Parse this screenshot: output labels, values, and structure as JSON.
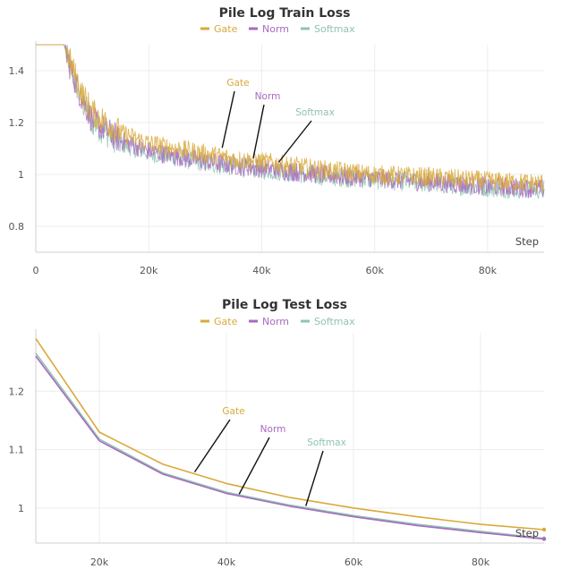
{
  "chart_data": [
    {
      "type": "line",
      "title": "Pile Log Train Loss",
      "xlabel": "Step",
      "ylabel": "",
      "xlim": [
        0,
        90000
      ],
      "ylim": [
        0.7,
        1.5
      ],
      "xticks": [
        0,
        20000,
        40000,
        60000,
        80000
      ],
      "xtick_labels": [
        "0",
        "20k",
        "40k",
        "60k",
        "80k"
      ],
      "yticks": [
        0.8,
        1.0,
        1.2,
        1.4
      ],
      "ytick_labels": [
        "0.8",
        "1",
        "1.2",
        "1.4"
      ],
      "grid": true,
      "legend": "top-center",
      "noisy": true,
      "series": [
        {
          "name": "Gate",
          "color": "#d9a93b",
          "x": [
            0,
            5000,
            6000,
            8000,
            10000,
            15000,
            20000,
            25000,
            30000,
            35000,
            40000,
            50000,
            60000,
            70000,
            80000,
            90000
          ],
          "y": [
            1.5,
            1.5,
            1.44,
            1.32,
            1.24,
            1.16,
            1.12,
            1.1,
            1.08,
            1.06,
            1.05,
            1.02,
            1.0,
            0.99,
            0.975,
            0.965
          ]
        },
        {
          "name": "Norm",
          "color": "#a86ac2",
          "x": [
            0,
            5000,
            6000,
            8000,
            10000,
            15000,
            20000,
            25000,
            30000,
            35000,
            40000,
            50000,
            60000,
            70000,
            80000,
            90000
          ],
          "y": [
            1.5,
            1.5,
            1.42,
            1.3,
            1.21,
            1.13,
            1.09,
            1.07,
            1.05,
            1.035,
            1.025,
            1.0,
            0.985,
            0.97,
            0.955,
            0.945
          ]
        },
        {
          "name": "Softmax",
          "color": "#8fc3b0",
          "x": [
            0,
            5000,
            6000,
            8000,
            10000,
            15000,
            20000,
            25000,
            30000,
            35000,
            40000,
            50000,
            60000,
            70000,
            80000,
            90000
          ],
          "y": [
            1.5,
            1.5,
            1.42,
            1.29,
            1.2,
            1.12,
            1.085,
            1.065,
            1.045,
            1.03,
            1.02,
            0.995,
            0.98,
            0.965,
            0.95,
            0.94
          ]
        }
      ],
      "annotations": [
        {
          "text": "Gate",
          "series": "Gate",
          "at_x": 33000
        },
        {
          "text": "Norm",
          "series": "Norm",
          "at_x": 38500
        },
        {
          "text": "Softmax",
          "series": "Softmax",
          "at_x": 43000
        }
      ]
    },
    {
      "type": "line",
      "title": "Pile Log Test Loss",
      "xlabel": "Step",
      "ylabel": "",
      "xlim": [
        10000,
        90000
      ],
      "ylim": [
        0.94,
        1.3
      ],
      "xticks": [
        20000,
        40000,
        60000,
        80000
      ],
      "xtick_labels": [
        "20k",
        "40k",
        "60k",
        "80k"
      ],
      "yticks": [
        1.0,
        1.1,
        1.2
      ],
      "ytick_labels": [
        "1",
        "1.1",
        "1.2"
      ],
      "grid": true,
      "legend": "top-center",
      "noisy": false,
      "series": [
        {
          "name": "Gate",
          "color": "#d9a93b",
          "x": [
            10000,
            20000,
            30000,
            40000,
            50000,
            60000,
            70000,
            80000,
            90000
          ],
          "y": [
            1.29,
            1.13,
            1.075,
            1.042,
            1.018,
            1.0,
            0.985,
            0.972,
            0.963
          ]
        },
        {
          "name": "Norm",
          "color": "#a86ac2",
          "x": [
            10000,
            20000,
            30000,
            40000,
            50000,
            60000,
            70000,
            80000,
            90000
          ],
          "y": [
            1.26,
            1.115,
            1.058,
            1.025,
            1.003,
            0.985,
            0.97,
            0.958,
            0.947
          ]
        },
        {
          "name": "Softmax",
          "color": "#8fc3b0",
          "x": [
            10000,
            20000,
            30000,
            40000,
            50000,
            60000,
            70000,
            80000,
            90000
          ],
          "y": [
            1.265,
            1.118,
            1.06,
            1.027,
            1.005,
            0.987,
            0.972,
            0.96,
            0.948
          ]
        }
      ],
      "annotations": [
        {
          "text": "Gate",
          "series": "Gate",
          "at_x": 35000
        },
        {
          "text": "Norm",
          "series": "Norm",
          "at_x": 42000
        },
        {
          "text": "Softmax",
          "series": "Softmax",
          "at_x": 52500
        }
      ]
    }
  ]
}
